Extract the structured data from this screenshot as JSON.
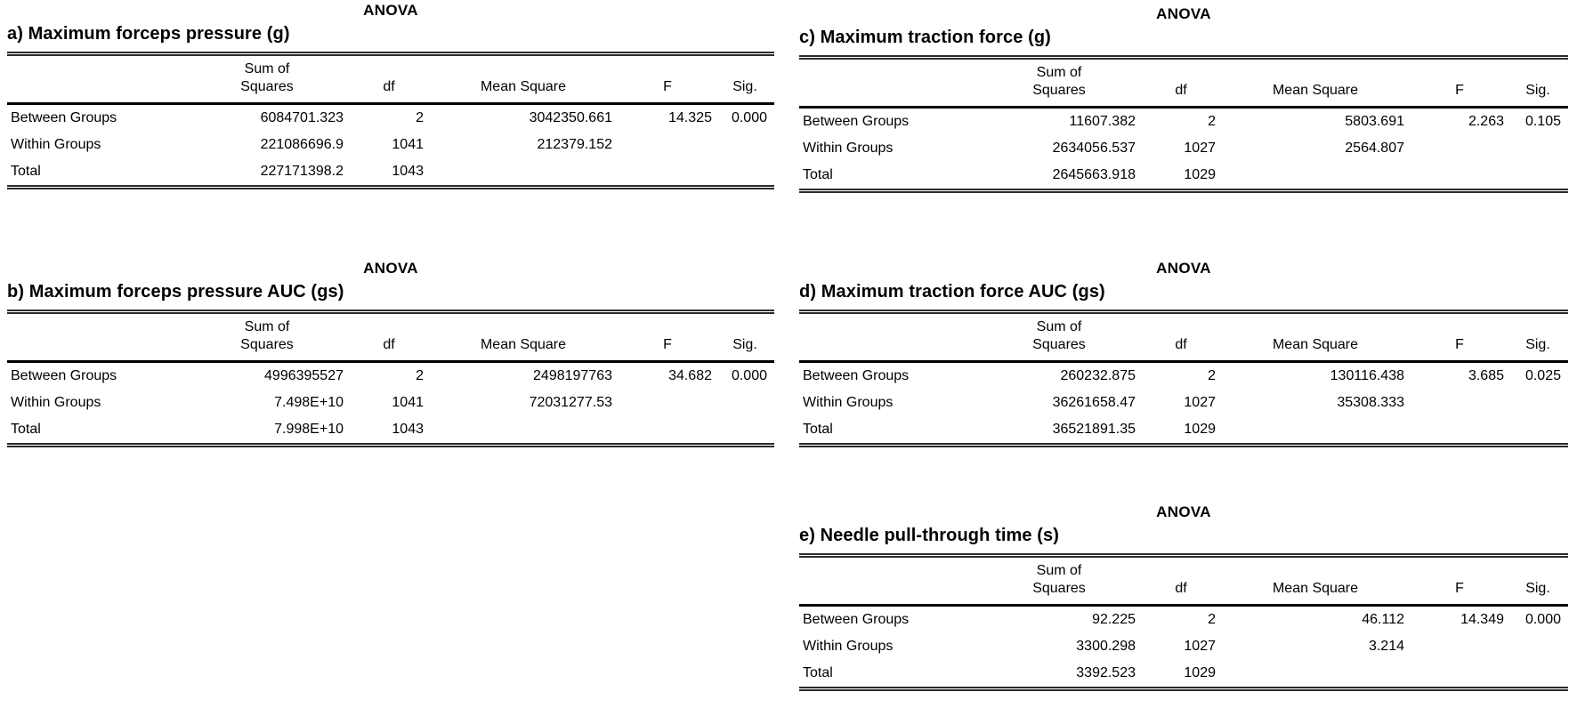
{
  "page": {
    "background_color": "#ffffff",
    "text_color": "#000000",
    "rule_color": "#000000"
  },
  "tables": [
    {
      "id": "a",
      "heading": "ANOVA",
      "subtitle": "a) Maximum forceps pressure (g)",
      "columns": {
        "label": "",
        "sum_line1": "Sum of",
        "sum_line2": "Squares",
        "df": "df",
        "mean_square": "Mean Square",
        "f": "F",
        "sig": "Sig."
      },
      "rows": [
        {
          "label": "Between Groups",
          "sum_of_squares": "6084701.323",
          "df": "2",
          "mean_square": "3042350.661",
          "f": "14.325",
          "sig": "0.000"
        },
        {
          "label": "Within Groups",
          "sum_of_squares": "221086696.9",
          "df": "1041",
          "mean_square": "212379.152",
          "f": "",
          "sig": ""
        },
        {
          "label": "Total",
          "sum_of_squares": "227171398.2",
          "df": "1043",
          "mean_square": "",
          "f": "",
          "sig": ""
        }
      ]
    },
    {
      "id": "b",
      "heading": "ANOVA",
      "subtitle": "b) Maximum forceps pressure AUC (gs)",
      "columns": {
        "label": "",
        "sum_line1": "Sum of",
        "sum_line2": "Squares",
        "df": "df",
        "mean_square": "Mean Square",
        "f": "F",
        "sig": "Sig."
      },
      "rows": [
        {
          "label": "Between Groups",
          "sum_of_squares": "4996395527",
          "df": "2",
          "mean_square": "2498197763",
          "f": "34.682",
          "sig": "0.000"
        },
        {
          "label": "Within Groups",
          "sum_of_squares": "7.498E+10",
          "df": "1041",
          "mean_square": "72031277.53",
          "f": "",
          "sig": ""
        },
        {
          "label": "Total",
          "sum_of_squares": "7.998E+10",
          "df": "1043",
          "mean_square": "",
          "f": "",
          "sig": ""
        }
      ]
    },
    {
      "id": "c",
      "heading": "ANOVA",
      "subtitle": "c) Maximum traction force (g)",
      "columns": {
        "label": "",
        "sum_line1": "Sum of",
        "sum_line2": "Squares",
        "df": "df",
        "mean_square": "Mean Square",
        "f": "F",
        "sig": "Sig."
      },
      "rows": [
        {
          "label": "Between Groups",
          "sum_of_squares": "11607.382",
          "df": "2",
          "mean_square": "5803.691",
          "f": "2.263",
          "sig": "0.105"
        },
        {
          "label": "Within Groups",
          "sum_of_squares": "2634056.537",
          "df": "1027",
          "mean_square": "2564.807",
          "f": "",
          "sig": ""
        },
        {
          "label": "Total",
          "sum_of_squares": "2645663.918",
          "df": "1029",
          "mean_square": "",
          "f": "",
          "sig": ""
        }
      ]
    },
    {
      "id": "d",
      "heading": "ANOVA",
      "subtitle": "d) Maximum traction force AUC (gs)",
      "columns": {
        "label": "",
        "sum_line1": "Sum of",
        "sum_line2": "Squares",
        "df": "df",
        "mean_square": "Mean Square",
        "f": "F",
        "sig": "Sig."
      },
      "rows": [
        {
          "label": "Between Groups",
          "sum_of_squares": "260232.875",
          "df": "2",
          "mean_square": "130116.438",
          "f": "3.685",
          "sig": "0.025"
        },
        {
          "label": "Within Groups",
          "sum_of_squares": "36261658.47",
          "df": "1027",
          "mean_square": "35308.333",
          "f": "",
          "sig": ""
        },
        {
          "label": "Total",
          "sum_of_squares": "36521891.35",
          "df": "1029",
          "mean_square": "",
          "f": "",
          "sig": ""
        }
      ]
    },
    {
      "id": "e",
      "heading": "ANOVA",
      "subtitle": "e) Needle pull-through time (s)",
      "columns": {
        "label": "",
        "sum_line1": "Sum of",
        "sum_line2": "Squares",
        "df": "df",
        "mean_square": "Mean Square",
        "f": "F",
        "sig": "Sig."
      },
      "rows": [
        {
          "label": "Between Groups",
          "sum_of_squares": "92.225",
          "df": "2",
          "mean_square": "46.112",
          "f": "14.349",
          "sig": "0.000"
        },
        {
          "label": "Within Groups",
          "sum_of_squares": "3300.298",
          "df": "1027",
          "mean_square": "3.214",
          "f": "",
          "sig": ""
        },
        {
          "label": "Total",
          "sum_of_squares": "3392.523",
          "df": "1029",
          "mean_square": "",
          "f": "",
          "sig": ""
        }
      ]
    }
  ]
}
